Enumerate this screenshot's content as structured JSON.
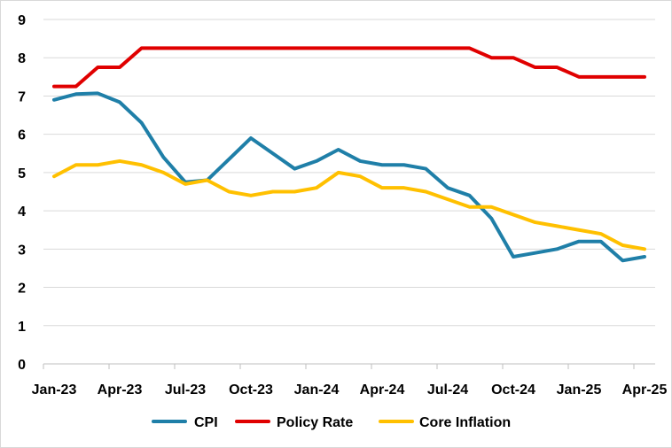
{
  "chart_data": {
    "type": "line",
    "title": "",
    "xlabel": "",
    "ylabel": "",
    "ylim": [
      0,
      9
    ],
    "yticks": [
      0,
      1,
      2,
      3,
      4,
      5,
      6,
      7,
      8,
      9
    ],
    "grid": "horizontal",
    "legend_position": "bottom",
    "x_tick_labels": [
      "Jan-23",
      "Apr-23",
      "Jul-23",
      "Oct-23",
      "Jan-24",
      "Apr-24",
      "Jul-24",
      "Oct-24",
      "Jan-25",
      "Apr-25"
    ],
    "x": [
      "Jan-23",
      "Feb-23",
      "Mar-23",
      "Apr-23",
      "May-23",
      "Jun-23",
      "Jul-23",
      "Aug-23",
      "Sep-23",
      "Oct-23",
      "Nov-23",
      "Dec-23",
      "Jan-24",
      "Feb-24",
      "Mar-24",
      "Apr-24",
      "May-24",
      "Jun-24",
      "Jul-24",
      "Aug-24",
      "Sep-24",
      "Oct-24",
      "Nov-24",
      "Dec-24",
      "Jan-25",
      "Feb-25",
      "Mar-25",
      "Apr-25"
    ],
    "series": [
      {
        "name": "CPI",
        "color": "#1F7FA8",
        "values": [
          6.9,
          7.05,
          7.07,
          6.84,
          6.3,
          5.4,
          4.75,
          4.8,
          5.35,
          5.9,
          5.5,
          5.1,
          5.3,
          5.6,
          5.3,
          5.2,
          5.2,
          5.1,
          4.6,
          4.4,
          3.8,
          2.8,
          2.9,
          3.0,
          3.2,
          3.2,
          2.7,
          2.8
        ]
      },
      {
        "name": "Policy Rate",
        "color": "#E00000",
        "values": [
          7.25,
          7.25,
          7.75,
          7.75,
          8.25,
          8.25,
          8.25,
          8.25,
          8.25,
          8.25,
          8.25,
          8.25,
          8.25,
          8.25,
          8.25,
          8.25,
          8.25,
          8.25,
          8.25,
          8.25,
          8.0,
          8.0,
          7.75,
          7.75,
          7.5,
          7.5,
          7.5,
          7.5
        ]
      },
      {
        "name": "Core Inflation",
        "color": "#FFC000",
        "values": [
          4.9,
          5.2,
          5.2,
          5.3,
          5.2,
          5.0,
          4.7,
          4.8,
          4.5,
          4.4,
          4.5,
          4.5,
          4.6,
          5.0,
          4.9,
          4.6,
          4.6,
          4.5,
          4.3,
          4.1,
          4.1,
          3.9,
          3.7,
          3.6,
          3.5,
          3.4,
          3.1,
          3.0
        ]
      }
    ]
  }
}
